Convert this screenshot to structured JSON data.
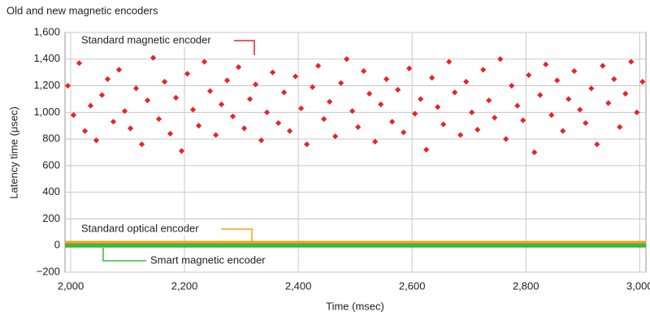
{
  "chart_data": {
    "type": "scatter",
    "title": "Old and new magnetic encoders",
    "x_label": "Time (msec)",
    "y_label": "Latency time (μsec)",
    "xlim": [
      1990,
      3011
    ],
    "ylim": [
      -200,
      1600
    ],
    "xticks": [
      {
        "value": 2000,
        "label": "2,000"
      },
      {
        "value": 2200,
        "label": "2,200"
      },
      {
        "value": 2400,
        "label": "2,400"
      },
      {
        "value": 2600,
        "label": "2,600"
      },
      {
        "value": 2800,
        "label": "2,800"
      },
      {
        "value": 3000,
        "label": "3,000"
      }
    ],
    "yticks": [
      {
        "value": -200,
        "label": "−200"
      },
      0,
      200,
      400,
      600,
      800,
      {
        "value": 1000,
        "label": "1,000"
      },
      {
        "value": 1200,
        "label": "1,200"
      },
      {
        "value": 1400,
        "label": "1,400"
      },
      {
        "value": 1600,
        "label": "1,600"
      }
    ],
    "grid": true,
    "series": [
      {
        "name": "Standard magnetic encoder",
        "type": "scatter",
        "color": "#e8232a",
        "x": [
          1995,
          2005,
          2015,
          2025,
          2035,
          2045,
          2055,
          2065,
          2075,
          2085,
          2095,
          2105,
          2115,
          2125,
          2135,
          2145,
          2155,
          2165,
          2175,
          2185,
          2195,
          2205,
          2215,
          2225,
          2235,
          2245,
          2255,
          2265,
          2275,
          2285,
          2295,
          2305,
          2315,
          2325,
          2335,
          2345,
          2355,
          2365,
          2375,
          2385,
          2395,
          2405,
          2415,
          2425,
          2435,
          2445,
          2455,
          2465,
          2475,
          2485,
          2495,
          2505,
          2515,
          2525,
          2535,
          2545,
          2555,
          2565,
          2575,
          2585,
          2595,
          2605,
          2615,
          2625,
          2635,
          2645,
          2655,
          2665,
          2675,
          2685,
          2695,
          2705,
          2715,
          2725,
          2735,
          2745,
          2755,
          2765,
          2775,
          2785,
          2795,
          2805,
          2815,
          2825,
          2835,
          2845,
          2855,
          2865,
          2875,
          2885,
          2895,
          2905,
          2915,
          2925,
          2935,
          2945,
          2955,
          2965,
          2975,
          2985,
          2995,
          3005
        ],
        "values": [
          1200,
          980,
          1370,
          860,
          1050,
          790,
          1130,
          1250,
          930,
          1320,
          1010,
          880,
          1180,
          760,
          1090,
          1410,
          950,
          1230,
          840,
          1110,
          710,
          1290,
          1020,
          900,
          1380,
          1160,
          830,
          1060,
          1240,
          970,
          1340,
          880,
          1100,
          1210,
          790,
          1000,
          1300,
          920,
          1150,
          860,
          1270,
          1030,
          760,
          1190,
          1350,
          950,
          1080,
          820,
          1220,
          1400,
          1010,
          890,
          1310,
          1140,
          780,
          1060,
          1250,
          930,
          1170,
          850,
          1330,
          990,
          1100,
          720,
          1260,
          1040,
          910,
          1380,
          1150,
          830,
          1230,
          1000,
          870,
          1320,
          1090,
          960,
          1400,
          800,
          1200,
          1050,
          940,
          1280,
          700,
          1130,
          1360,
          980,
          1240,
          860,
          1100,
          1310,
          1020,
          920,
          1180,
          760,
          1350,
          1070,
          1250,
          890,
          1140,
          1380,
          1000,
          1230
        ]
      },
      {
        "name": "Standard optical encoder",
        "type": "line",
        "color": "#f5a01a",
        "x": [
          1990,
          3011
        ],
        "values": [
          20,
          20
        ]
      },
      {
        "name": "Smart magnetic encoder",
        "type": "line",
        "color": "#3cb83c",
        "x": [
          1990,
          3011
        ],
        "values": [
          0,
          0
        ]
      }
    ]
  }
}
